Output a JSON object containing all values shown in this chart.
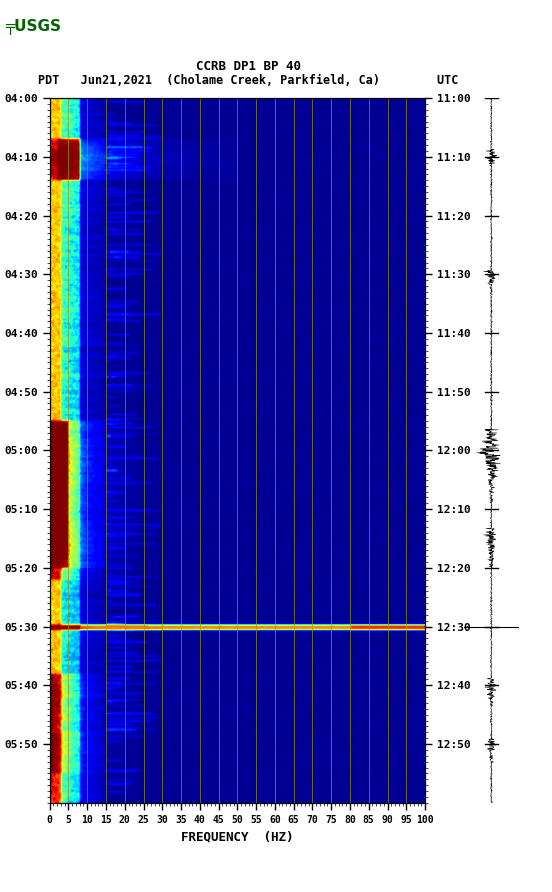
{
  "title_line1": "CCRB DP1 BP 40",
  "title_line2_pdt": "PDT   Jun21,2021  (Cholame Creek, Parkfield, Ca)        UTC",
  "xlabel": "FREQUENCY  (HZ)",
  "freq_ticks": [
    0,
    5,
    10,
    15,
    20,
    25,
    30,
    35,
    40,
    45,
    50,
    55,
    60,
    65,
    70,
    75,
    80,
    85,
    90,
    95,
    100
  ],
  "freq_min": 0,
  "freq_max": 100,
  "left_yticks_labels": [
    "04:00",
    "04:10",
    "04:20",
    "04:30",
    "04:40",
    "04:50",
    "05:00",
    "05:10",
    "05:20",
    "05:30",
    "05:40",
    "05:50"
  ],
  "right_yticks_labels": [
    "11:00",
    "11:10",
    "11:20",
    "11:30",
    "11:40",
    "11:50",
    "12:00",
    "12:10",
    "12:20",
    "12:30",
    "12:40",
    "12:50"
  ],
  "background_color": "#ffffff",
  "grid_color": "#999900",
  "vertical_grid_freqs": [
    5,
    10,
    15,
    20,
    25,
    30,
    35,
    40,
    45,
    50,
    55,
    60,
    65,
    70,
    75,
    80,
    85,
    90,
    95,
    100
  ],
  "n_time_bins": 660,
  "n_freq_bins": 400,
  "seed": 42,
  "usgs_color": "#006400"
}
